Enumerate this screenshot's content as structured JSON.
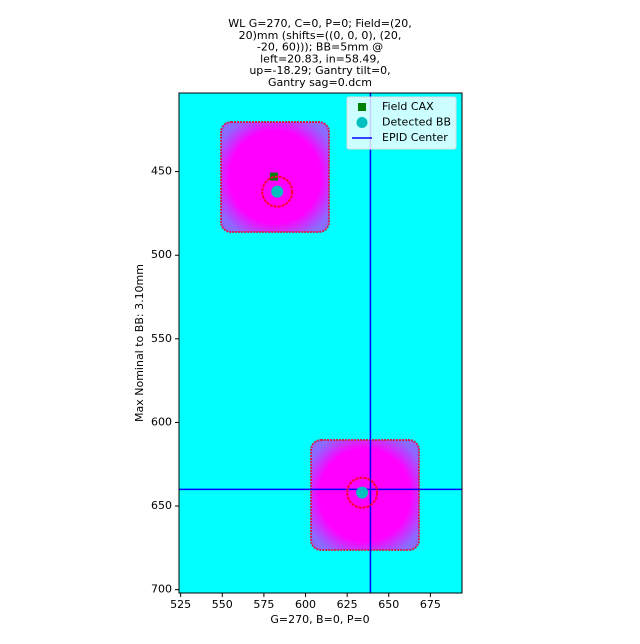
{
  "chart_data": {
    "type": "image",
    "title": [
      "WL G=270, C=0, P=0; Field=(20,",
      "20)mm (shifts=((0, 0, 0), (20,",
      "-20, 60))); BB=5mm @",
      "left=20.83, in=58.49,",
      "up=-18.29; Gantry tilt=0,",
      "Gantry sag=0.dcm"
    ],
    "xlabel": "G=270, B=0, P=0",
    "ylabel": "Max Nominal to BB: 3.10mm",
    "xlim": [
      524,
      694
    ],
    "ylim": [
      702,
      403
    ],
    "xticks": [
      525,
      550,
      575,
      600,
      625,
      650,
      675
    ],
    "yticks": [
      450,
      500,
      550,
      600,
      650,
      700
    ],
    "legend": "upper right",
    "series": [
      {
        "name": "Field CAX",
        "color": "#008000",
        "marker": "square",
        "x": [
          581
        ],
        "y": [
          453
        ]
      },
      {
        "name": "Detected BB",
        "color": "#00bfbf",
        "marker": "circle",
        "x": [
          583,
          634
        ],
        "y": [
          462,
          642
        ]
      },
      {
        "name": "EPID Center",
        "color": "#0000ff",
        "marker": "crosshair",
        "x": [
          639
        ],
        "y": [
          640
        ]
      }
    ]
  }
}
